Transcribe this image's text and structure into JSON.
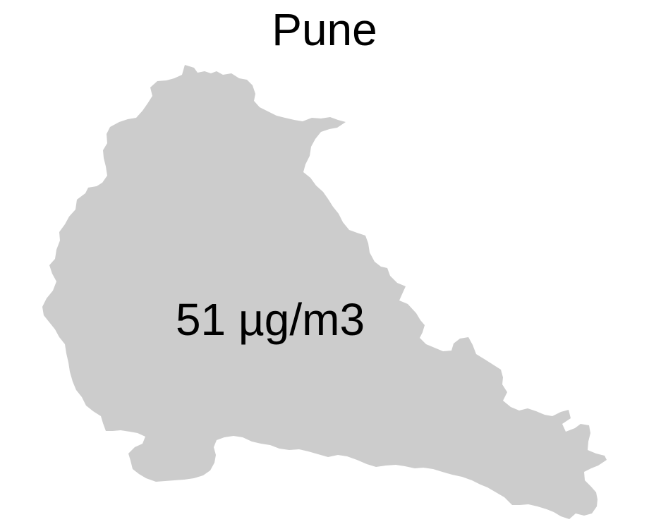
{
  "map": {
    "title": "Pune",
    "value_label": "51 µg/m3",
    "region_fill": "#cccccc",
    "text_color": "#000000",
    "background": "#ffffff"
  }
}
